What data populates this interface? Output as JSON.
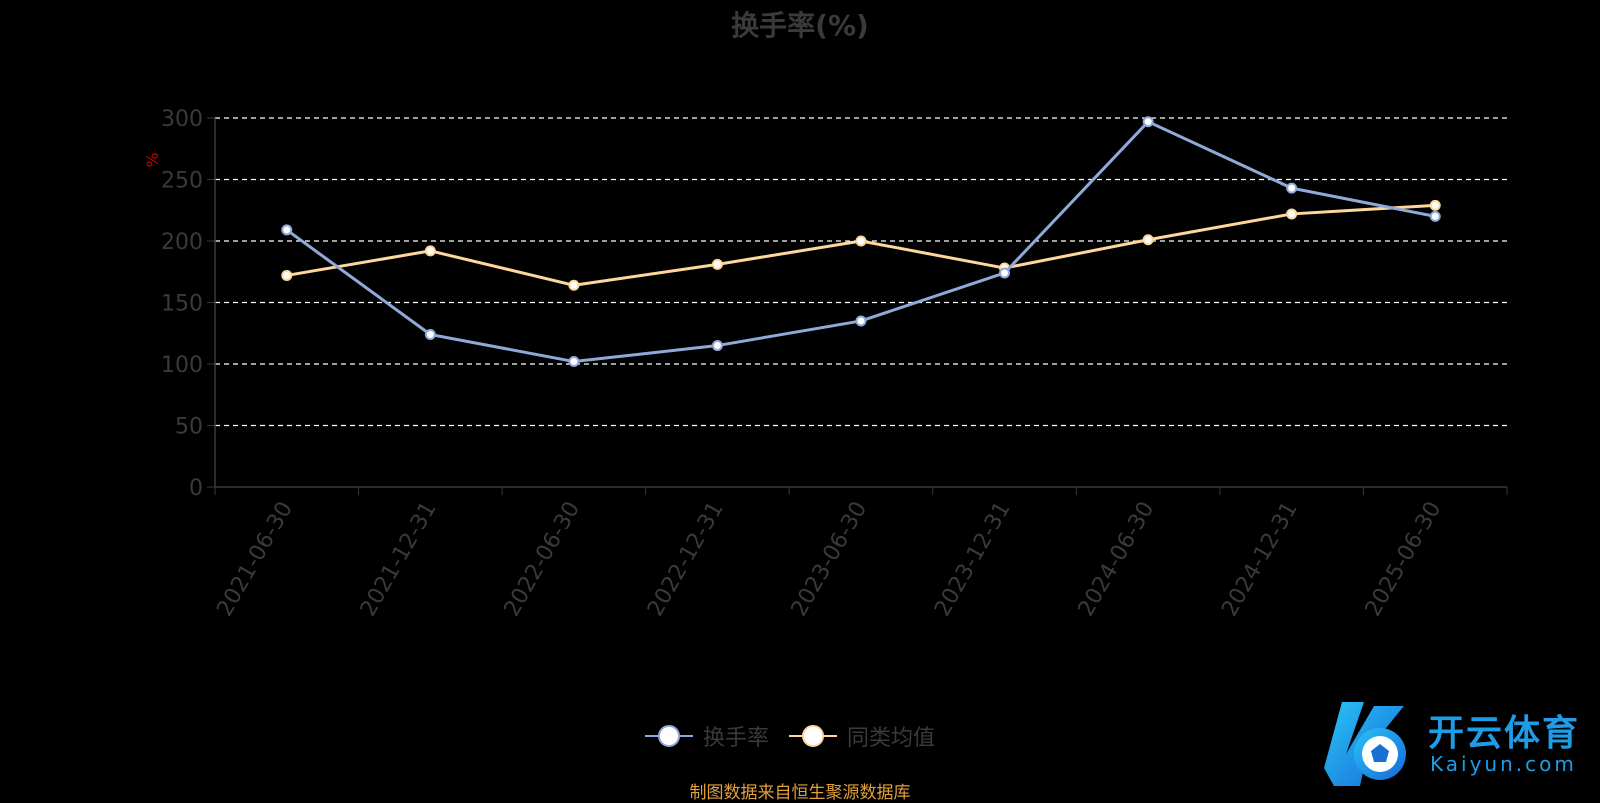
{
  "chart_data": {
    "type": "line",
    "title": "换手率(%)",
    "ylabel": "%",
    "ylim": [
      0,
      300
    ],
    "yticks": [
      0,
      50,
      100,
      150,
      200,
      250,
      300
    ],
    "categories": [
      "2021-06-30",
      "2021-12-31",
      "2022-06-30",
      "2022-12-31",
      "2023-06-30",
      "2023-12-31",
      "2024-06-30",
      "2024-12-31",
      "2025-06-30"
    ],
    "series": [
      {
        "name": "换手率",
        "color": "#8fa9d8",
        "values": [
          209,
          124,
          102,
          115,
          135,
          174,
          297,
          243,
          220
        ]
      },
      {
        "name": "同类均值",
        "color": "#fdd89a",
        "values": [
          172,
          192,
          164,
          181,
          200,
          178,
          201,
          222,
          229
        ]
      }
    ],
    "grid": true,
    "legend_position": "bottom-center"
  },
  "footer": {
    "source": "制图数据来自恒生聚源数据库"
  },
  "logo": {
    "cn": "开云体育",
    "en": "Kaiyun.com"
  },
  "colors": {
    "background": "#000000",
    "axis": "#3a3a3a",
    "grid": "#ffffff",
    "ylabel": "#cc0000",
    "source": "#e1a03a",
    "logo": "#1e9ce8"
  }
}
